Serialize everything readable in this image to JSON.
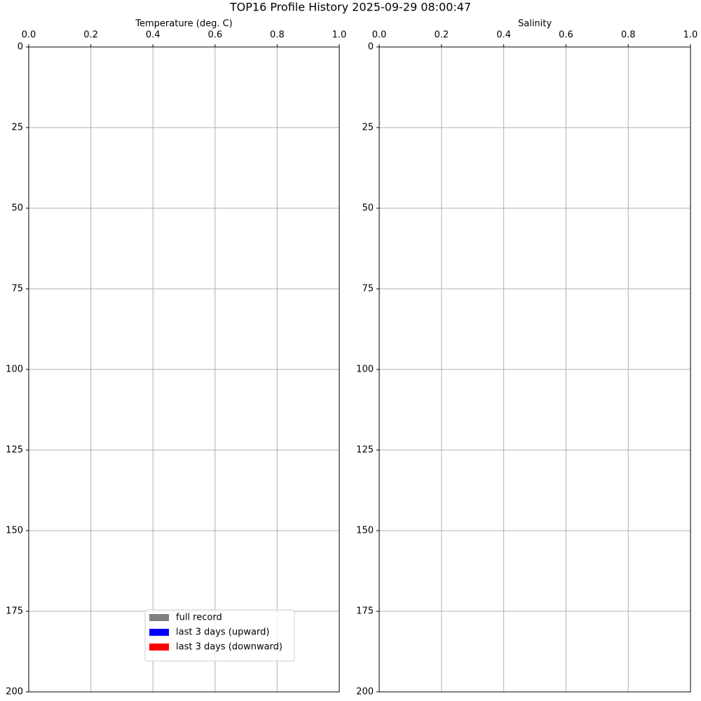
{
  "title": "TOP16 Profile History 2025-09-29 08:00:47",
  "chart_data": [
    {
      "type": "line",
      "xlabel": "Temperature (deg. C)",
      "xlim": [
        0,
        1
      ],
      "xticks": [
        {
          "value": 0,
          "label": "0.0"
        },
        0.2,
        0.4,
        0.6,
        0.8,
        {
          "value": 1,
          "label": "1.0"
        }
      ],
      "ylim": [
        0,
        200
      ],
      "yticks": [
        0,
        25,
        50,
        75,
        100,
        125,
        150,
        175,
        200
      ],
      "y_inverted": true,
      "x_axis_position": "top",
      "grid": true,
      "legend_loc": "best",
      "series": [
        {
          "name": "full record",
          "color": "#808080",
          "values": []
        },
        {
          "name": "last 3 days (upward)",
          "color": "#0000ff",
          "values": []
        },
        {
          "name": "last 3 days (downward)",
          "color": "#ff0000",
          "values": []
        }
      ]
    },
    {
      "type": "line",
      "xlabel": "Salinity",
      "xlim": [
        0,
        1
      ],
      "xticks": [
        {
          "value": 0,
          "label": "0.0"
        },
        0.2,
        0.4,
        0.6,
        0.8,
        {
          "value": 1,
          "label": "1.0"
        }
      ],
      "ylim": [
        0,
        200
      ],
      "yticks": [
        0,
        25,
        50,
        75,
        100,
        125,
        150,
        175,
        200
      ],
      "y_inverted": true,
      "x_axis_position": "top",
      "grid": true,
      "series": []
    }
  ]
}
